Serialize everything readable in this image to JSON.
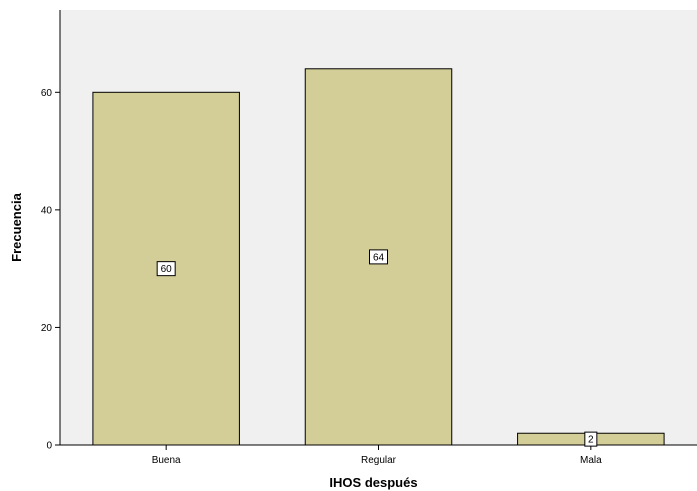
{
  "chart_data": {
    "type": "bar",
    "categories": [
      "Buena",
      "Regular",
      "Mala"
    ],
    "values": [
      60,
      64,
      2
    ],
    "data_labels": [
      "60",
      "64",
      "2"
    ],
    "title": "",
    "xlabel": "IHOS después",
    "ylabel": "Frecuencia",
    "ylim": [
      0,
      74
    ],
    "yticks": [
      0,
      20,
      40,
      60
    ],
    "ytick_labels": [
      "0",
      "20",
      "40",
      "60"
    ],
    "grid": false,
    "legend": "none",
    "colors": {
      "plot_background": "#f0f0f0",
      "bar_fill": "#d3ce97",
      "bar_stroke": "#000000"
    }
  }
}
